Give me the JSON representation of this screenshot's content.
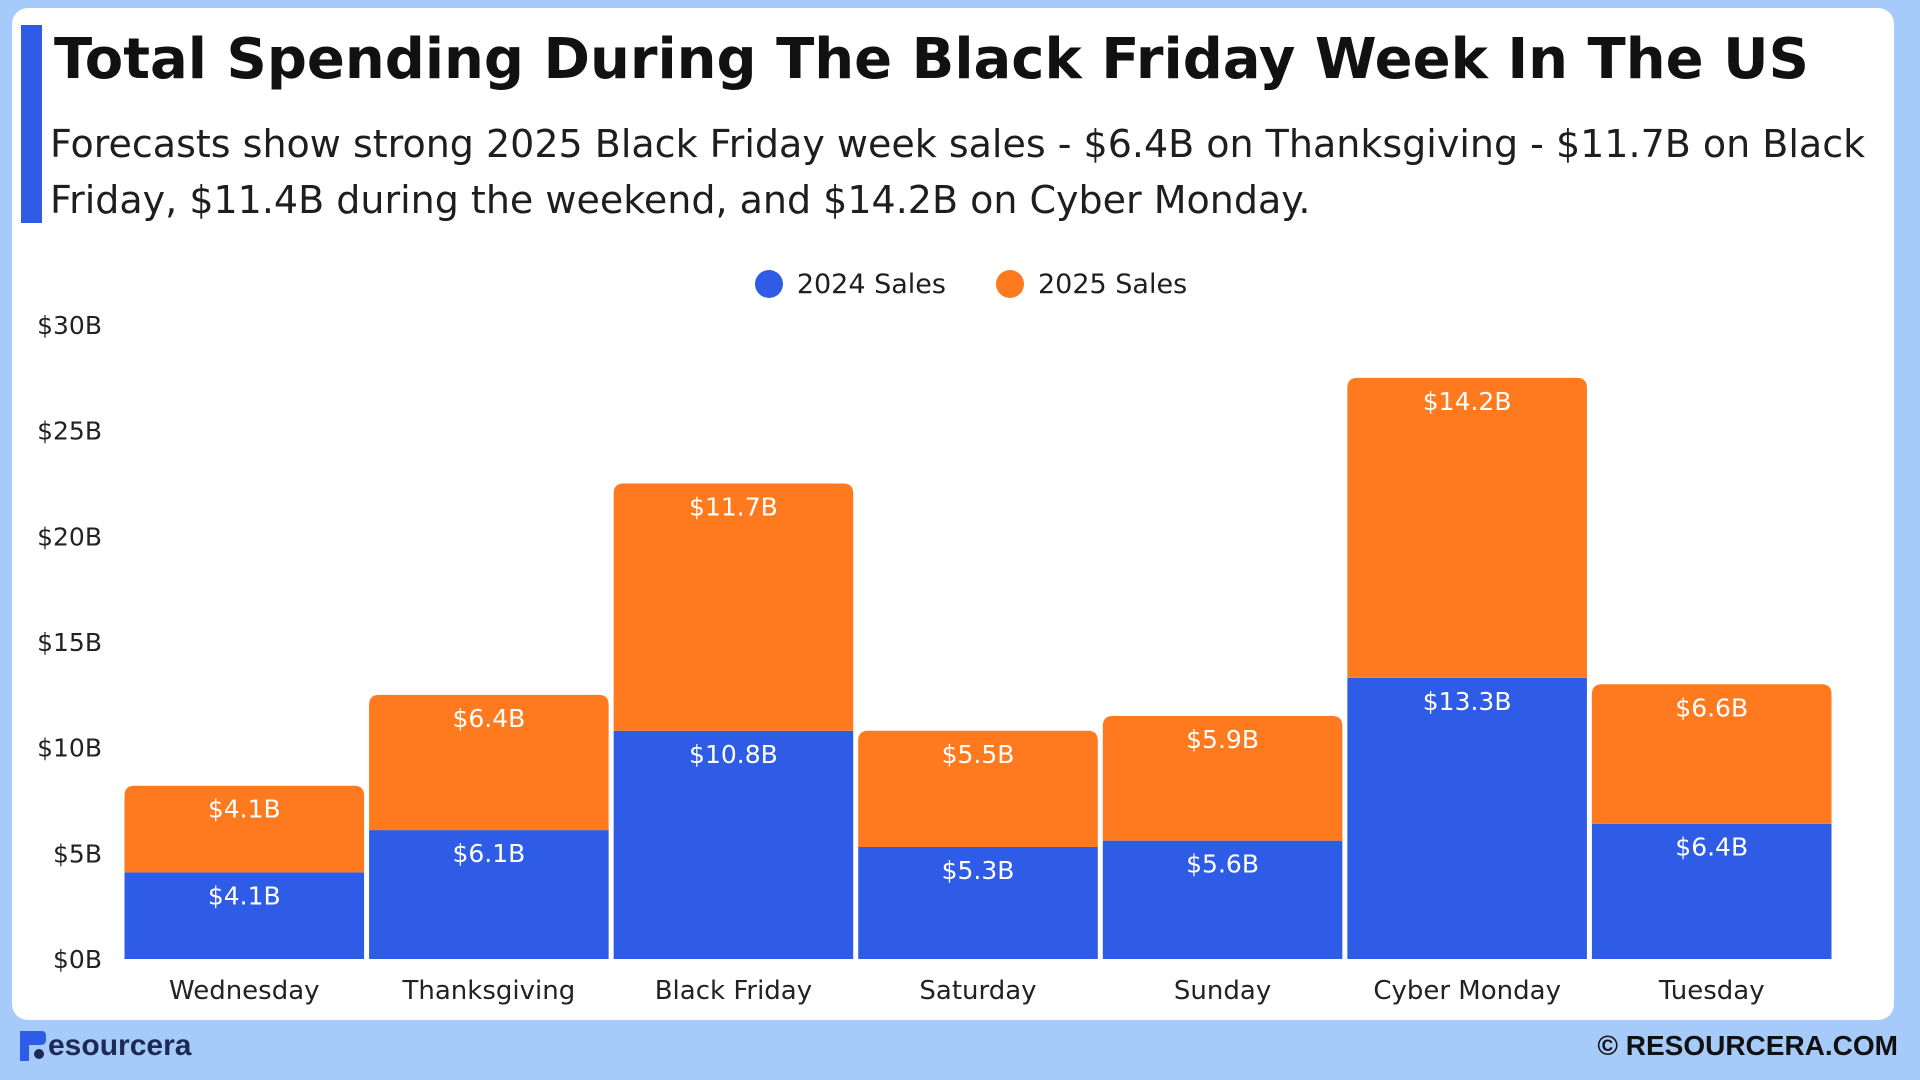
{
  "colors": {
    "series_2024": "#2f5ce6",
    "series_2025": "#ff7a1f",
    "accent": "#2f5ce6",
    "page_background": "#a6cbfa"
  },
  "header": {
    "title": "Total Spending During The Black Friday Week In The US",
    "subtitle": "Forecasts show strong 2025 Black Friday week sales - $6.4B on Thanksgiving - $11.7B on Black Friday, $11.4B during the weekend, and $14.2B on Cyber Monday."
  },
  "footer": {
    "brand": "esourcera",
    "copyright": "© RESOURCERA.COM"
  },
  "chart_data": {
    "type": "bar",
    "stacked": true,
    "categories": [
      "Wednesday",
      "Thanksgiving",
      "Black Friday",
      "Saturday",
      "Sunday",
      "Cyber Monday",
      "Tuesday"
    ],
    "series": [
      {
        "name": "2024 Sales",
        "values": [
          4.1,
          6.1,
          10.8,
          5.3,
          5.6,
          13.3,
          6.4
        ],
        "labels": [
          "$4.1B",
          "$6.1B",
          "$10.8B",
          "$5.3B",
          "$5.6B",
          "$13.3B",
          "$6.4B"
        ],
        "color": "#2f5ce6"
      },
      {
        "name": "2025 Sales",
        "values": [
          4.1,
          6.4,
          11.7,
          5.5,
          5.9,
          14.2,
          6.6
        ],
        "labels": [
          "$4.1B",
          "$6.4B",
          "$11.7B",
          "$5.5B",
          "$5.9B",
          "$14.2B",
          "$6.6B"
        ],
        "color": "#ff7a1f"
      }
    ],
    "ylim": [
      0,
      30
    ],
    "yticks": [
      0,
      5,
      10,
      15,
      20,
      25,
      30
    ],
    "ytick_labels": [
      "$0B",
      "$5B",
      "$10B",
      "$15B",
      "$20B",
      "$25B",
      "$30B"
    ],
    "xlabel": "",
    "ylabel": "",
    "grid": false,
    "legend": "top-center"
  }
}
